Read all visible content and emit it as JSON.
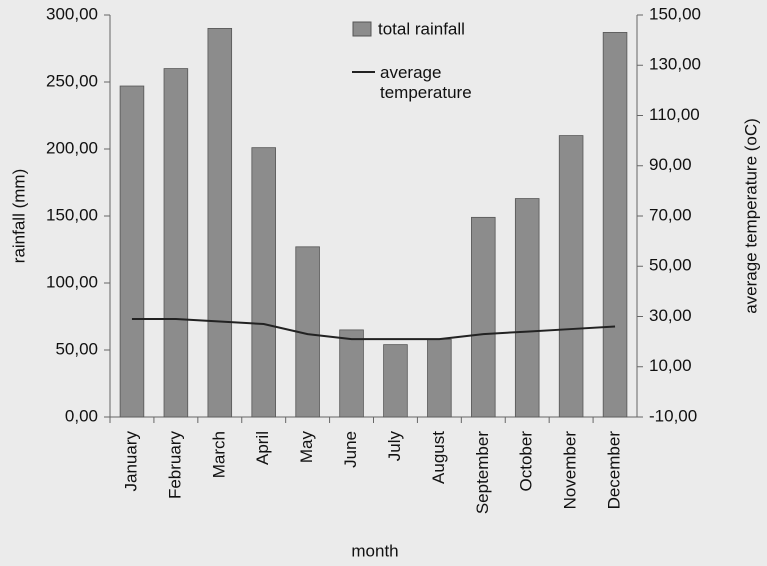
{
  "chart_data": {
    "type": "combo",
    "x_label": "month",
    "y_label": "rainfall (mm)",
    "y2_label": "average temperature (oC)",
    "categories": [
      "January",
      "February",
      "March",
      "April",
      "May",
      "June",
      "July",
      "August",
      "September",
      "October",
      "November",
      "December"
    ],
    "series": [
      {
        "name": "total rainfall",
        "type": "bar",
        "color": "#8c8c8c",
        "values": [
          247,
          260,
          290,
          201,
          127,
          65,
          54,
          58,
          149,
          163,
          210,
          287
        ]
      },
      {
        "name": "average temperature",
        "type": "line",
        "axis": "y2",
        "color": "#222222",
        "values": [
          29,
          29,
          28,
          27,
          23,
          21,
          21,
          21,
          23,
          24,
          25,
          26
        ]
      }
    ],
    "ylim": [
      0,
      300
    ],
    "yticks": [
      {
        "value": 0,
        "label": "0,00"
      },
      {
        "value": 50,
        "label": "50,00"
      },
      {
        "value": 100,
        "label": "100,00"
      },
      {
        "value": 150,
        "label": "150,00"
      },
      {
        "value": 200,
        "label": "200,00"
      },
      {
        "value": 250,
        "label": "250,00"
      },
      {
        "value": 300,
        "label": "300,00"
      }
    ],
    "y2lim": [
      -10,
      150
    ],
    "y2ticks": [
      {
        "value": -10,
        "label": "-10,00"
      },
      {
        "value": 10,
        "label": "10,00"
      },
      {
        "value": 30,
        "label": "30,00"
      },
      {
        "value": 50,
        "label": "50,00"
      },
      {
        "value": 70,
        "label": "70,00"
      },
      {
        "value": 90,
        "label": "90,00"
      },
      {
        "value": 110,
        "label": "110,00"
      },
      {
        "value": 130,
        "label": "130,00"
      },
      {
        "value": 150,
        "label": "150,00"
      }
    ],
    "grid": false
  }
}
